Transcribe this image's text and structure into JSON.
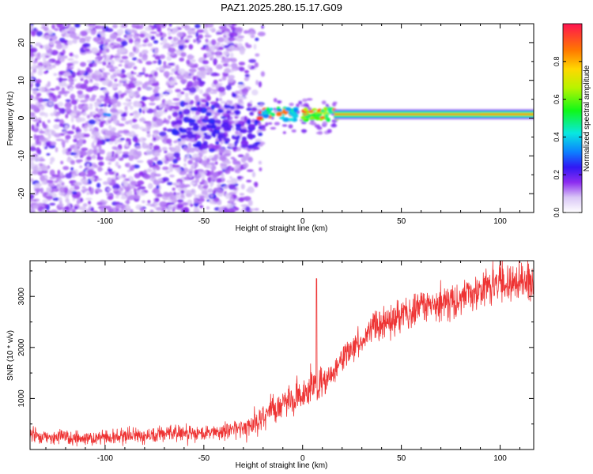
{
  "figure": {
    "title": "PAZ1.2025.280.15.17.G09"
  },
  "chart_data": [
    {
      "type": "heatmap",
      "title": "PAZ1.2025.280.15.17.G09",
      "xlabel": "Height of straight line (km)",
      "ylabel": "Frequency (Hz)",
      "xlim": [
        -138,
        117
      ],
      "ylim": [
        -25,
        25
      ],
      "xticks": [
        -100,
        -50,
        0,
        50,
        100
      ],
      "yticks": [
        -20,
        -10,
        0,
        10,
        20
      ],
      "colorbar": {
        "label": "Normalized spectral amplitude",
        "range": [
          0,
          1
        ],
        "ticks": [
          0.0,
          0.2,
          0.4,
          0.6,
          0.8
        ]
      },
      "features": [
        {
          "name": "scattered noise",
          "x_range": [
            -138,
            -20
          ],
          "f_range": [
            -25,
            25
          ],
          "amplitude": "0.05-0.25"
        },
        {
          "name": "line onset",
          "x_range": [
            -25,
            18
          ],
          "f_center": 1,
          "amplitude": "0.3-0.9"
        },
        {
          "name": "coherent line",
          "x_range": [
            18,
            117
          ],
          "f_center": 1,
          "amplitude": "0.9-1.0"
        }
      ]
    },
    {
      "type": "line",
      "xlabel": "Height of straight line (km)",
      "ylabel": "SNR (10 * v/v)",
      "xlim": [
        -138,
        117
      ],
      "ylim": [
        0,
        3700
      ],
      "xticks": [
        -100,
        -50,
        0,
        50,
        100
      ],
      "yticks": [
        1000,
        2000,
        3000
      ],
      "color": "#ee3333",
      "series": [
        {
          "name": "SNR",
          "x": [
            -138,
            -130,
            -120,
            -110,
            -100,
            -90,
            -80,
            -70,
            -60,
            -50,
            -40,
            -30,
            -25,
            -20,
            -15,
            -10,
            -5,
            0,
            5,
            10,
            15,
            20,
            25,
            30,
            35,
            40,
            45,
            50,
            55,
            60,
            65,
            70,
            75,
            80,
            85,
            90,
            95,
            100,
            105,
            110,
            117
          ],
          "y": [
            300,
            250,
            230,
            220,
            250,
            270,
            280,
            300,
            320,
            330,
            370,
            420,
            500,
            650,
            800,
            900,
            1050,
            1100,
            1200,
            1300,
            1500,
            1750,
            1950,
            2150,
            2300,
            2450,
            2550,
            2600,
            2700,
            2800,
            2850,
            2900,
            2950,
            3000,
            3050,
            3150,
            3200,
            3250,
            3250,
            3280,
            3300
          ]
        }
      ],
      "annotations": [
        {
          "type": "spike",
          "x": 7,
          "y": 3350
        }
      ]
    }
  ]
}
